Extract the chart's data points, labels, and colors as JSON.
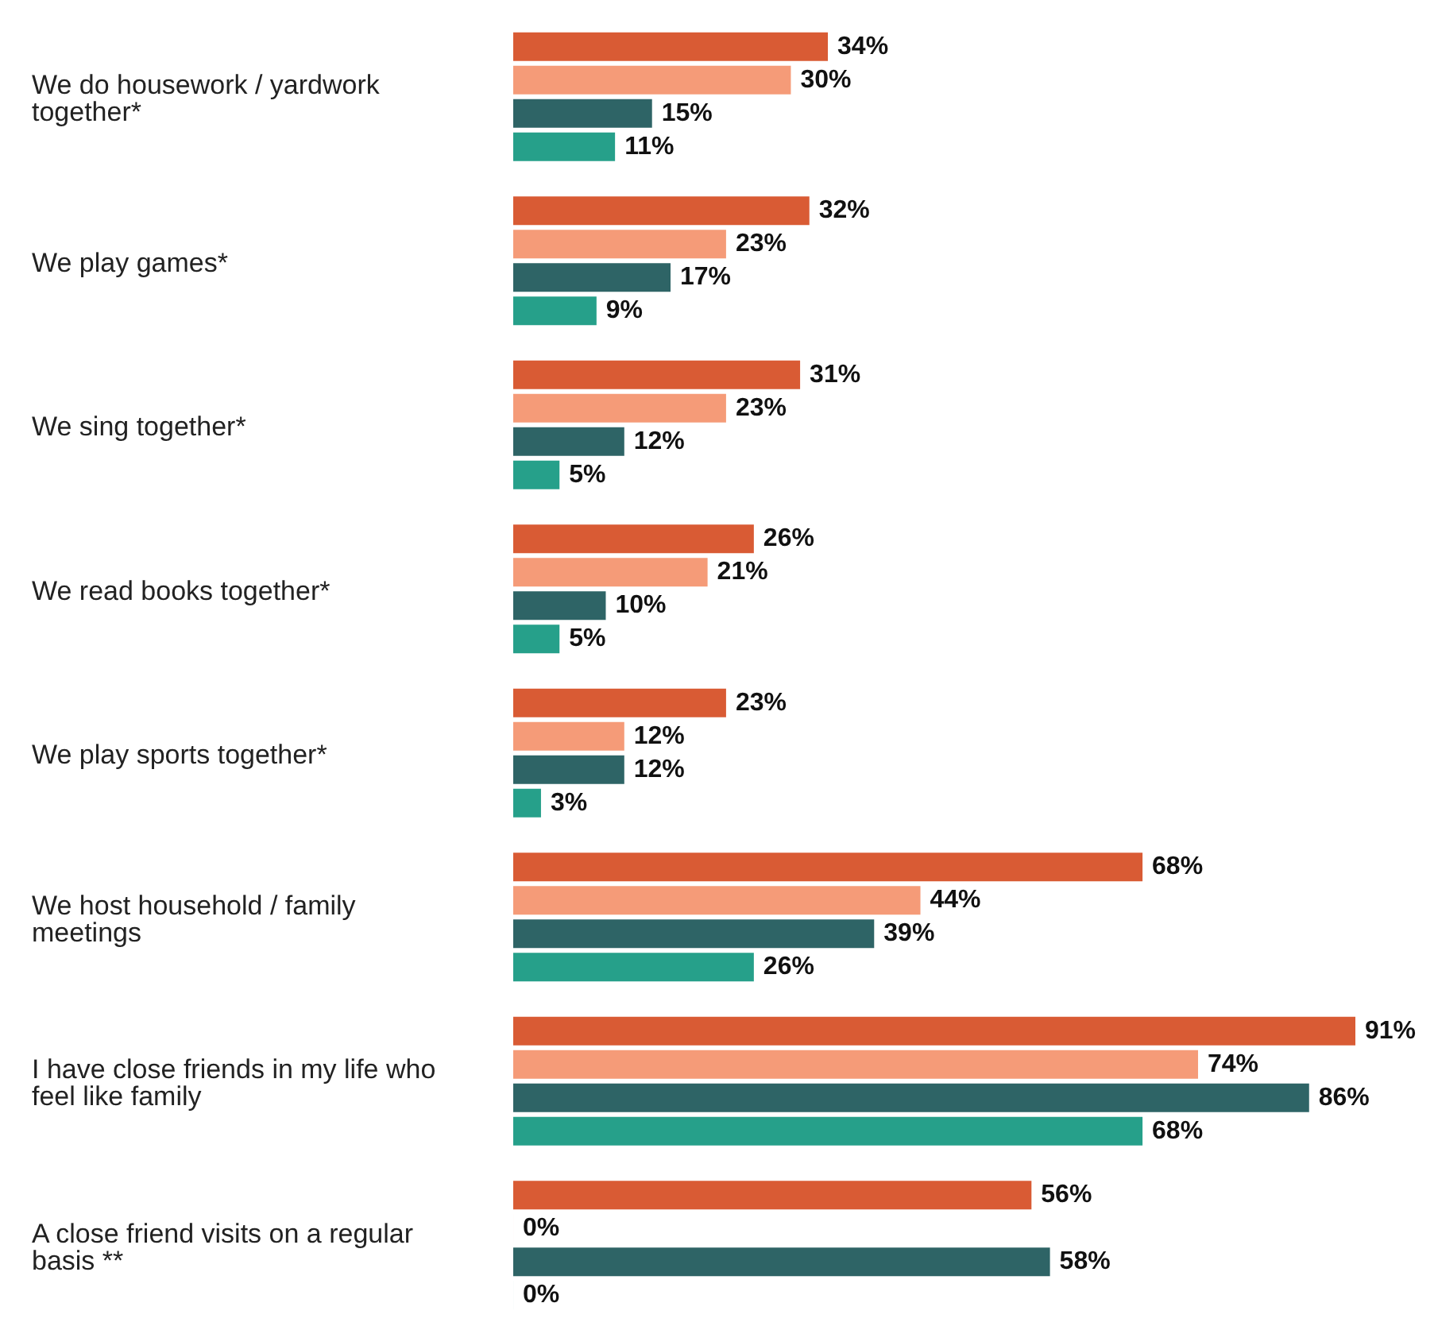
{
  "chart_data": {
    "type": "bar",
    "orientation": "horizontal",
    "categories": [
      "We do housework / yardwork together*",
      "We play games*",
      "We sing together*",
      "We read books together*",
      "We play sports together*",
      "We host household / family meetings",
      "I have close friends in my life who feel like family",
      "A close friend visits on a regular basis **"
    ],
    "series": [
      {
        "color": "#d95b34",
        "values": [
          34,
          32,
          31,
          26,
          23,
          68,
          91,
          56
        ],
        "value_labels": [
          "34%",
          "32%",
          "31%",
          "26%",
          "23%",
          "68%",
          "91%",
          "56%"
        ]
      },
      {
        "color": "#f59b78",
        "values": [
          30,
          23,
          23,
          21,
          12,
          44,
          74,
          0
        ],
        "value_labels": [
          "30%",
          "23%",
          "23%",
          "21%",
          "12%",
          "44%",
          "74%",
          "0%"
        ]
      },
      {
        "color": "#2e6466",
        "values": [
          15,
          17,
          12,
          10,
          12,
          39,
          86,
          58
        ],
        "value_labels": [
          "15%",
          "17%",
          "12%",
          "10%",
          "12%",
          "39%",
          "86%",
          "58%"
        ]
      },
      {
        "color": "#26a08a",
        "values": [
          11,
          9,
          5,
          5,
          3,
          26,
          68,
          0
        ],
        "value_labels": [
          "11%",
          "9%",
          "5%",
          "5%",
          "3%",
          "26%",
          "68%",
          "0%"
        ]
      }
    ],
    "legend": false,
    "grid": false
  }
}
